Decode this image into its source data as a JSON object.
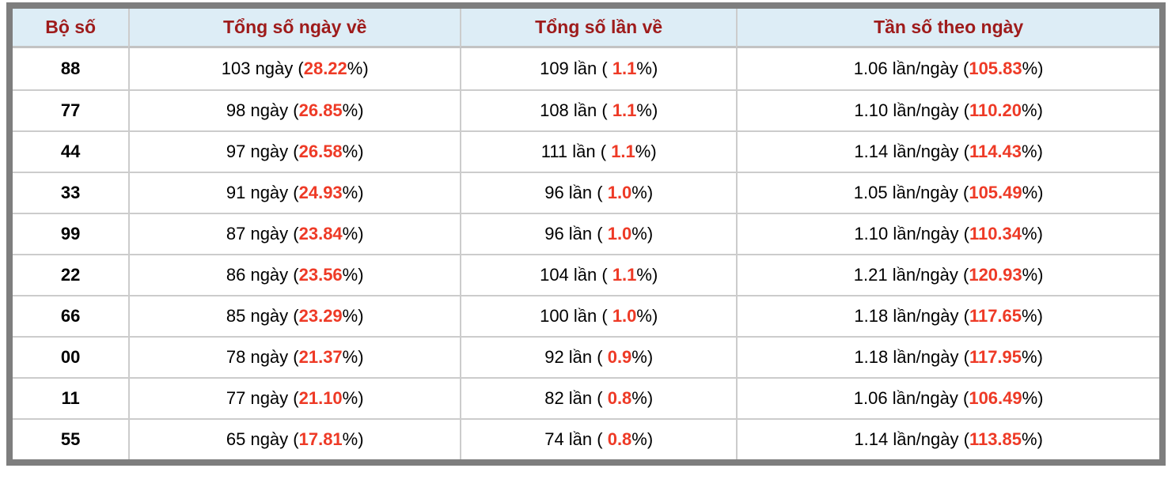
{
  "colors": {
    "header_bg": "#ddedf6",
    "header_text": "#9e1b1b",
    "highlight": "#ee3a26",
    "frame_border": "#7e7e7e",
    "grid_line": "#cccccc"
  },
  "table": {
    "columns": [
      "Bộ số",
      "Tổng số ngày về",
      "Tổng số lần về",
      "Tần số theo ngày"
    ],
    "rows": [
      [
        [
          {
            "t": "88"
          }
        ],
        [
          {
            "t": "103 ngày ("
          },
          {
            "t": "28.22",
            "hl": true
          },
          {
            "t": "%)"
          }
        ],
        [
          {
            "t": "109 lần ( "
          },
          {
            "t": "1.1",
            "hl": true
          },
          {
            "t": "%)"
          }
        ],
        [
          {
            "t": "1.06 lần/ngày ("
          },
          {
            "t": "105.83",
            "hl": true
          },
          {
            "t": "%)"
          }
        ]
      ],
      [
        [
          {
            "t": "77"
          }
        ],
        [
          {
            "t": "98 ngày ("
          },
          {
            "t": "26.85",
            "hl": true
          },
          {
            "t": "%)"
          }
        ],
        [
          {
            "t": "108 lần ( "
          },
          {
            "t": "1.1",
            "hl": true
          },
          {
            "t": "%)"
          }
        ],
        [
          {
            "t": "1.10 lần/ngày ("
          },
          {
            "t": "110.20",
            "hl": true
          },
          {
            "t": "%)"
          }
        ]
      ],
      [
        [
          {
            "t": "44"
          }
        ],
        [
          {
            "t": "97 ngày ("
          },
          {
            "t": "26.58",
            "hl": true
          },
          {
            "t": "%)"
          }
        ],
        [
          {
            "t": "111 lần ( "
          },
          {
            "t": "1.1",
            "hl": true
          },
          {
            "t": "%)"
          }
        ],
        [
          {
            "t": "1.14 lần/ngày ("
          },
          {
            "t": "114.43",
            "hl": true
          },
          {
            "t": "%)"
          }
        ]
      ],
      [
        [
          {
            "t": "33"
          }
        ],
        [
          {
            "t": "91 ngày ("
          },
          {
            "t": "24.93",
            "hl": true
          },
          {
            "t": "%)"
          }
        ],
        [
          {
            "t": "96 lần ( "
          },
          {
            "t": "1.0",
            "hl": true
          },
          {
            "t": "%)"
          }
        ],
        [
          {
            "t": "1.05 lần/ngày ("
          },
          {
            "t": "105.49",
            "hl": true
          },
          {
            "t": "%)"
          }
        ]
      ],
      [
        [
          {
            "t": "99"
          }
        ],
        [
          {
            "t": "87 ngày ("
          },
          {
            "t": "23.84",
            "hl": true
          },
          {
            "t": "%)"
          }
        ],
        [
          {
            "t": "96 lần ( "
          },
          {
            "t": "1.0",
            "hl": true
          },
          {
            "t": "%)"
          }
        ],
        [
          {
            "t": "1.10 lần/ngày ("
          },
          {
            "t": "110.34",
            "hl": true
          },
          {
            "t": "%)"
          }
        ]
      ],
      [
        [
          {
            "t": "22"
          }
        ],
        [
          {
            "t": "86 ngày ("
          },
          {
            "t": "23.56",
            "hl": true
          },
          {
            "t": "%)"
          }
        ],
        [
          {
            "t": "104 lần ( "
          },
          {
            "t": "1.1",
            "hl": true
          },
          {
            "t": "%)"
          }
        ],
        [
          {
            "t": "1.21 lần/ngày ("
          },
          {
            "t": "120.93",
            "hl": true
          },
          {
            "t": "%)"
          }
        ]
      ],
      [
        [
          {
            "t": "66"
          }
        ],
        [
          {
            "t": "85 ngày ("
          },
          {
            "t": "23.29",
            "hl": true
          },
          {
            "t": "%)"
          }
        ],
        [
          {
            "t": "100 lần ( "
          },
          {
            "t": "1.0",
            "hl": true
          },
          {
            "t": "%)"
          }
        ],
        [
          {
            "t": "1.18 lần/ngày ("
          },
          {
            "t": "117.65",
            "hl": true
          },
          {
            "t": "%)"
          }
        ]
      ],
      [
        [
          {
            "t": "00"
          }
        ],
        [
          {
            "t": "78 ngày ("
          },
          {
            "t": "21.37",
            "hl": true
          },
          {
            "t": "%)"
          }
        ],
        [
          {
            "t": "92 lần ( "
          },
          {
            "t": "0.9",
            "hl": true
          },
          {
            "t": "%)"
          }
        ],
        [
          {
            "t": "1.18 lần/ngày ("
          },
          {
            "t": "117.95",
            "hl": true
          },
          {
            "t": "%)"
          }
        ]
      ],
      [
        [
          {
            "t": "11"
          }
        ],
        [
          {
            "t": "77 ngày ("
          },
          {
            "t": "21.10",
            "hl": true
          },
          {
            "t": "%)"
          }
        ],
        [
          {
            "t": "82 lần ( "
          },
          {
            "t": "0.8",
            "hl": true
          },
          {
            "t": "%)"
          }
        ],
        [
          {
            "t": "1.06 lần/ngày ("
          },
          {
            "t": "106.49",
            "hl": true
          },
          {
            "t": "%)"
          }
        ]
      ],
      [
        [
          {
            "t": "55"
          }
        ],
        [
          {
            "t": "65 ngày ("
          },
          {
            "t": "17.81",
            "hl": true
          },
          {
            "t": "%)"
          }
        ],
        [
          {
            "t": "74 lần ( "
          },
          {
            "t": "0.8",
            "hl": true
          },
          {
            "t": "%)"
          }
        ],
        [
          {
            "t": "1.14 lần/ngày ("
          },
          {
            "t": "113.85",
            "hl": true
          },
          {
            "t": "%)"
          }
        ]
      ]
    ]
  }
}
